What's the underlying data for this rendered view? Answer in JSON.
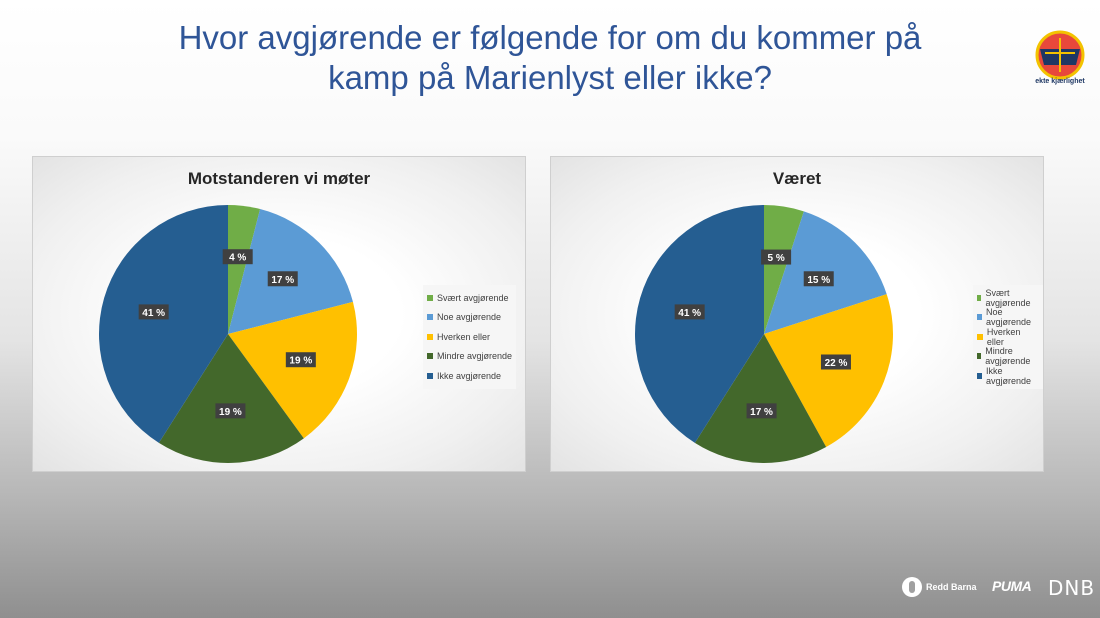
{
  "slide": {
    "title_line1": "Hvor avgjørende er følgende for om du kommer på",
    "title_line2": "kamp på Marienlyst eller ikke?",
    "logo_caption": "ekte kjærlighet"
  },
  "sponsors": {
    "redd_barna": "Redd Barna",
    "puma": "PUMA",
    "dnb": "DNB"
  },
  "colors": {
    "Svært avgjørende": "#70ad47",
    "Noe avgjørende": "#5b9bd5",
    "Hverken eller": "#ffc000",
    "Mindre avgjørende": "#43682b",
    "Ikke avgjørende": "#255e91"
  },
  "chart_data": [
    {
      "type": "pie",
      "title": "Motstanderen vi møter",
      "categories": [
        "Svært avgjørende",
        "Noe avgjørende",
        "Hverken eller",
        "Mindre avgjørende",
        "Ikke avgjørende"
      ],
      "values": [
        4,
        17,
        19,
        19,
        41
      ],
      "labels": [
        "4 %",
        "17 %",
        "19 %",
        "19 %",
        "41 %"
      ],
      "legend": "right"
    },
    {
      "type": "pie",
      "title": "Været",
      "categories": [
        "Svært avgjørende",
        "Noe avgjørende",
        "Hverken eller",
        "Mindre avgjørende",
        "Ikke avgjørende"
      ],
      "values": [
        5,
        15,
        22,
        17,
        41
      ],
      "labels": [
        "5 %",
        "15 %",
        "22 %",
        "17 %",
        "41 %"
      ],
      "legend": "right"
    }
  ]
}
